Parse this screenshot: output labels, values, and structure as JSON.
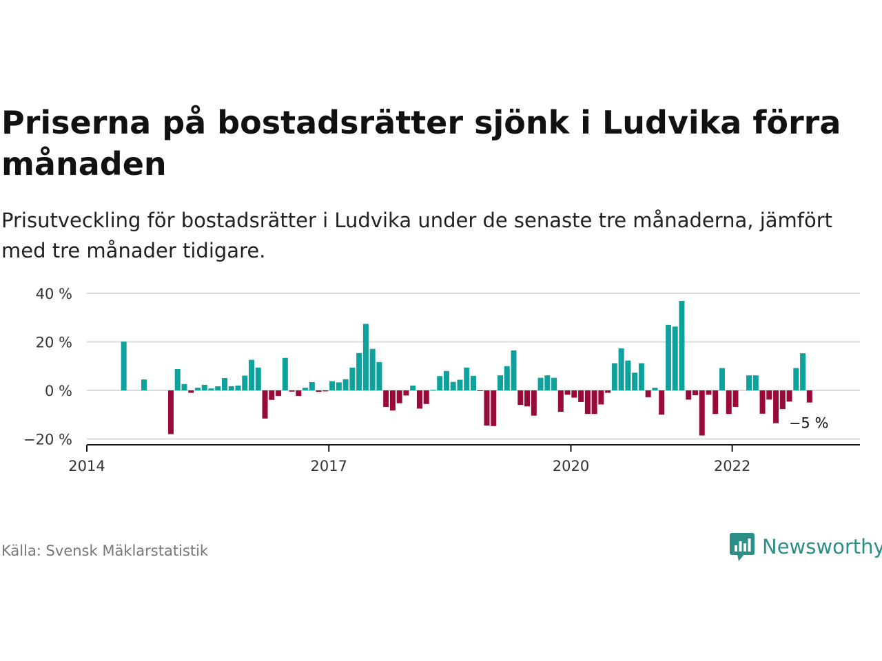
{
  "header": {
    "title": "Priserna på bostadsrätter sjönk i Ludvika förra månaden",
    "subtitle": "Prisutveckling för bostadsrätter i Ludvika under de senaste tre månaderna, jämfört med tre månader tidigare."
  },
  "footer": {
    "source": "Källa: Svensk Mäklarstatistik",
    "brand": "Newsworthy",
    "brand_icon": "bar-chart-speech-bubble-icon"
  },
  "colors": {
    "positive": "#0fa19b",
    "negative": "#990a3a",
    "grid": "#d9d9d9",
    "axis": "#111111",
    "brand": "#2b8f87"
  },
  "chart_data": {
    "type": "bar",
    "x_start": "2014-01",
    "x_end": "2023-08",
    "x_ticks": [
      {
        "date": "2014-01",
        "label": "2014"
      },
      {
        "date": "2017-01",
        "label": "2017"
      },
      {
        "date": "2020-01",
        "label": "2020"
      },
      {
        "date": "2022-01",
        "label": "2022"
      }
    ],
    "y_ticks": [
      {
        "value": 40,
        "label": "40 %"
      },
      {
        "value": 20,
        "label": "20 %"
      },
      {
        "value": 0,
        "label": "0 %"
      },
      {
        "value": -20,
        "label": "−20 %"
      }
    ],
    "ylim": [
      -20.5,
      40
    ],
    "grid": true,
    "last_value_label": "−5 %",
    "series": [
      {
        "values": [
          {
            "date": "2014-06",
            "value": 20.1
          },
          {
            "date": "2014-09",
            "value": 4.5
          },
          {
            "date": "2015-01",
            "value": -18.0
          },
          {
            "date": "2015-02",
            "value": 8.8
          },
          {
            "date": "2015-03",
            "value": 2.6
          },
          {
            "date": "2015-04",
            "value": -1.0
          },
          {
            "date": "2015-05",
            "value": 1.1
          },
          {
            "date": "2015-06",
            "value": 2.3
          },
          {
            "date": "2015-07",
            "value": 0.8
          },
          {
            "date": "2015-08",
            "value": 1.7
          },
          {
            "date": "2015-09",
            "value": 5.1
          },
          {
            "date": "2015-10",
            "value": 1.7
          },
          {
            "date": "2015-11",
            "value": 2.0
          },
          {
            "date": "2015-12",
            "value": 6.1
          },
          {
            "date": "2016-01",
            "value": 12.6
          },
          {
            "date": "2016-02",
            "value": 9.4
          },
          {
            "date": "2016-03",
            "value": -11.6
          },
          {
            "date": "2016-04",
            "value": -3.9
          },
          {
            "date": "2016-05",
            "value": -2.3
          },
          {
            "date": "2016-06",
            "value": 13.4
          },
          {
            "date": "2016-07",
            "value": -0.5
          },
          {
            "date": "2016-08",
            "value": -2.3
          },
          {
            "date": "2016-09",
            "value": 1.1
          },
          {
            "date": "2016-10",
            "value": 3.4
          },
          {
            "date": "2016-11",
            "value": -0.6
          },
          {
            "date": "2016-12",
            "value": -0.4
          },
          {
            "date": "2017-01",
            "value": 3.8
          },
          {
            "date": "2017-02",
            "value": 3.3
          },
          {
            "date": "2017-03",
            "value": 4.6
          },
          {
            "date": "2017-04",
            "value": 9.4
          },
          {
            "date": "2017-05",
            "value": 15.4
          },
          {
            "date": "2017-06",
            "value": 27.4
          },
          {
            "date": "2017-07",
            "value": 17.1
          },
          {
            "date": "2017-08",
            "value": 11.7
          },
          {
            "date": "2017-09",
            "value": -6.8
          },
          {
            "date": "2017-10",
            "value": -8.3
          },
          {
            "date": "2017-11",
            "value": -5.3
          },
          {
            "date": "2017-12",
            "value": -2.1
          },
          {
            "date": "2018-01",
            "value": 2.0
          },
          {
            "date": "2018-02",
            "value": -7.5
          },
          {
            "date": "2018-03",
            "value": -5.6
          },
          {
            "date": "2018-04",
            "value": 0.3
          },
          {
            "date": "2018-05",
            "value": 5.9
          },
          {
            "date": "2018-06",
            "value": 8.0
          },
          {
            "date": "2018-07",
            "value": 3.5
          },
          {
            "date": "2018-08",
            "value": 4.4
          },
          {
            "date": "2018-09",
            "value": 9.4
          },
          {
            "date": "2018-10",
            "value": 6.0
          },
          {
            "date": "2018-11",
            "value": -0.3
          },
          {
            "date": "2018-12",
            "value": -14.5
          },
          {
            "date": "2019-01",
            "value": -14.7
          },
          {
            "date": "2019-02",
            "value": 6.2
          },
          {
            "date": "2019-03",
            "value": 10.0
          },
          {
            "date": "2019-04",
            "value": 16.5
          },
          {
            "date": "2019-05",
            "value": -6.0
          },
          {
            "date": "2019-06",
            "value": -6.6
          },
          {
            "date": "2019-07",
            "value": -10.4
          },
          {
            "date": "2019-08",
            "value": 5.2
          },
          {
            "date": "2019-09",
            "value": 6.2
          },
          {
            "date": "2019-10",
            "value": 5.2
          },
          {
            "date": "2019-11",
            "value": -8.8
          },
          {
            "date": "2019-12",
            "value": -1.8
          },
          {
            "date": "2020-01",
            "value": -3.0
          },
          {
            "date": "2020-02",
            "value": -4.8
          },
          {
            "date": "2020-03",
            "value": -9.7
          },
          {
            "date": "2020-04",
            "value": -9.7
          },
          {
            "date": "2020-05",
            "value": -5.8
          },
          {
            "date": "2020-06",
            "value": -1.0
          },
          {
            "date": "2020-07",
            "value": 11.2
          },
          {
            "date": "2020-08",
            "value": 17.3
          },
          {
            "date": "2020-09",
            "value": 12.3
          },
          {
            "date": "2020-10",
            "value": 7.3
          },
          {
            "date": "2020-11",
            "value": 11.2
          },
          {
            "date": "2020-12",
            "value": -2.8
          },
          {
            "date": "2021-01",
            "value": 1.1
          },
          {
            "date": "2021-02",
            "value": -10.0
          },
          {
            "date": "2021-03",
            "value": 27.0
          },
          {
            "date": "2021-04",
            "value": 26.3
          },
          {
            "date": "2021-05",
            "value": 36.9
          },
          {
            "date": "2021-06",
            "value": -3.8
          },
          {
            "date": "2021-07",
            "value": -2.0
          },
          {
            "date": "2021-08",
            "value": -18.6
          },
          {
            "date": "2021-09",
            "value": -1.8
          },
          {
            "date": "2021-10",
            "value": -9.7
          },
          {
            "date": "2021-11",
            "value": 9.2
          },
          {
            "date": "2021-12",
            "value": -9.7
          },
          {
            "date": "2022-01",
            "value": -6.8
          },
          {
            "date": "2022-03",
            "value": 6.2
          },
          {
            "date": "2022-04",
            "value": 6.2
          },
          {
            "date": "2022-05",
            "value": -9.6
          },
          {
            "date": "2022-06",
            "value": -3.8
          },
          {
            "date": "2022-07",
            "value": -13.5
          },
          {
            "date": "2022-08",
            "value": -7.7
          },
          {
            "date": "2022-09",
            "value": -4.6
          },
          {
            "date": "2022-10",
            "value": 9.2
          },
          {
            "date": "2022-11",
            "value": 15.3
          },
          {
            "date": "2022-12",
            "value": -5.0
          }
        ]
      }
    ]
  }
}
